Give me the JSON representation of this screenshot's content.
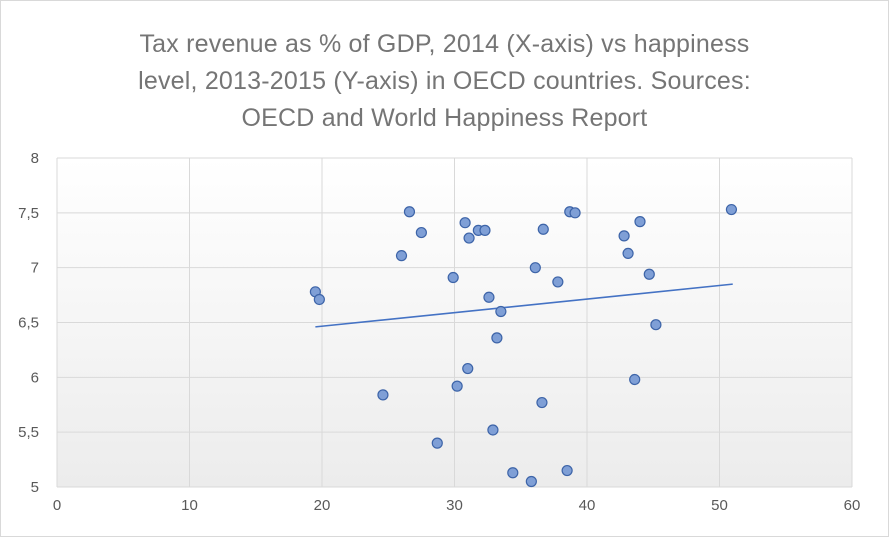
{
  "chart_data": {
    "type": "scatter",
    "title_lines": [
      "Tax revenue as % of GDP, 2014 (X-axis) vs happiness",
      "level, 2013-2015 (Y-axis) in OECD countries. Sources:",
      "OECD and World Happiness Report"
    ],
    "xlabel": "",
    "ylabel": "",
    "xlim": [
      0,
      60
    ],
    "ylim": [
      5,
      8
    ],
    "x_ticks": [
      0,
      10,
      20,
      30,
      40,
      50,
      60
    ],
    "x_tick_labels": [
      "0",
      "10",
      "20",
      "30",
      "40",
      "50",
      "60"
    ],
    "y_ticks": [
      5,
      5.5,
      6,
      6.5,
      7,
      7.5,
      8
    ],
    "y_tick_labels": [
      "5",
      "5,5",
      "6",
      "6,5",
      "7",
      "7,5",
      "8"
    ],
    "grid": true,
    "legend": "none",
    "colors": {
      "marker_fill": "#7f9fd6",
      "marker_stroke": "#3d64a8",
      "trendline": "#4472c4",
      "gridline": "#d9d9d9",
      "plot_gradient_bottom": "#ececec"
    },
    "points": [
      {
        "x": 19.5,
        "y": 6.78
      },
      {
        "x": 19.8,
        "y": 6.71
      },
      {
        "x": 24.6,
        "y": 5.84
      },
      {
        "x": 26.0,
        "y": 7.11
      },
      {
        "x": 26.6,
        "y": 7.51
      },
      {
        "x": 27.5,
        "y": 7.32
      },
      {
        "x": 28.7,
        "y": 5.4
      },
      {
        "x": 29.9,
        "y": 6.91
      },
      {
        "x": 30.2,
        "y": 5.92
      },
      {
        "x": 30.8,
        "y": 7.41
      },
      {
        "x": 31.0,
        "y": 6.08
      },
      {
        "x": 31.1,
        "y": 7.27
      },
      {
        "x": 31.8,
        "y": 7.34
      },
      {
        "x": 32.3,
        "y": 7.34
      },
      {
        "x": 32.6,
        "y": 6.73
      },
      {
        "x": 32.9,
        "y": 5.52
      },
      {
        "x": 33.2,
        "y": 6.36
      },
      {
        "x": 33.5,
        "y": 6.6
      },
      {
        "x": 34.4,
        "y": 5.13
      },
      {
        "x": 35.8,
        "y": 5.05
      },
      {
        "x": 36.1,
        "y": 7.0
      },
      {
        "x": 36.6,
        "y": 5.77
      },
      {
        "x": 36.7,
        "y": 7.35
      },
      {
        "x": 37.8,
        "y": 6.87
      },
      {
        "x": 38.5,
        "y": 5.15
      },
      {
        "x": 38.7,
        "y": 7.51
      },
      {
        "x": 39.1,
        "y": 7.5
      },
      {
        "x": 42.8,
        "y": 7.29
      },
      {
        "x": 43.1,
        "y": 7.13
      },
      {
        "x": 43.6,
        "y": 5.98
      },
      {
        "x": 44.0,
        "y": 7.42
      },
      {
        "x": 44.7,
        "y": 6.94
      },
      {
        "x": 45.2,
        "y": 6.48
      },
      {
        "x": 50.9,
        "y": 7.53
      }
    ],
    "trendline": {
      "x": [
        19.5,
        51.0
      ],
      "y": [
        6.46,
        6.85
      ]
    }
  }
}
